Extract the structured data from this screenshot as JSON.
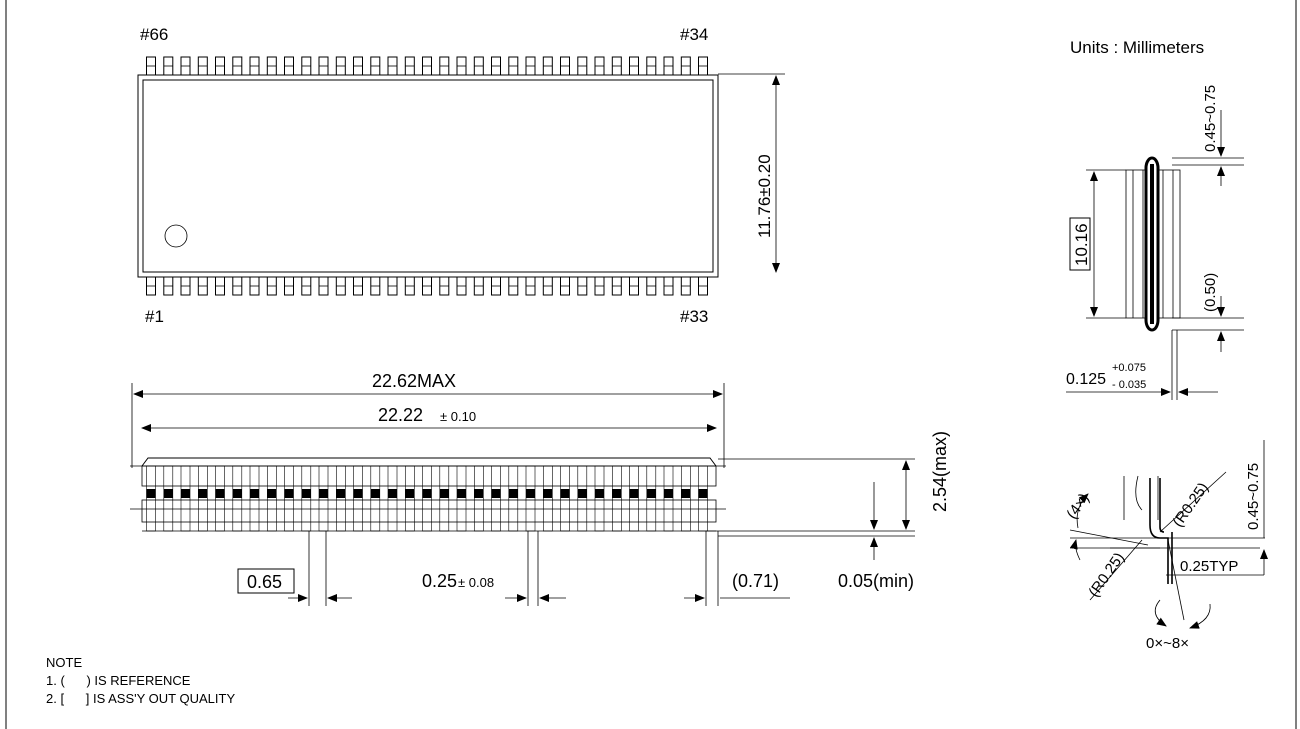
{
  "units_label": "Units : Millimeters",
  "top_view": {
    "pin_top_left": "#66",
    "pin_top_right": "#34",
    "pin_bottom_left": "#1",
    "pin_bottom_right": "#33",
    "width_dim": "11.76±0.20",
    "pins_per_side": 33
  },
  "side_view": {
    "overall_length": "22.62MAX",
    "body_length_value": "22.22",
    "body_length_tol": "± 0.10",
    "pitch": "0.65",
    "lead_width_value": "0.25",
    "lead_width_tol": "± 0.08",
    "end_ref": "(0.71)",
    "height": "2.54(max)",
    "standoff": "0.05(min)"
  },
  "end_view": {
    "body_width": "10.16",
    "lead_length": "0.45~0.75",
    "lead_ref": "(0.50)",
    "thickness_value": "0.125",
    "thickness_plus": "+0.075",
    "thickness_minus": "- 0.035"
  },
  "detail_view": {
    "angle_count": "(4×)",
    "radius_left": "(R0.25)",
    "radius_right": "(R0.25)",
    "foot_length": "0.45~0.75",
    "foot_typ": "0.25TYP",
    "angle_range": "0×~8×"
  },
  "notes": {
    "title": "NOTE",
    "line1": "1. (      ) IS REFERENCE",
    "line2": "2. [      ] IS ASS'Y OUT QUALITY"
  }
}
